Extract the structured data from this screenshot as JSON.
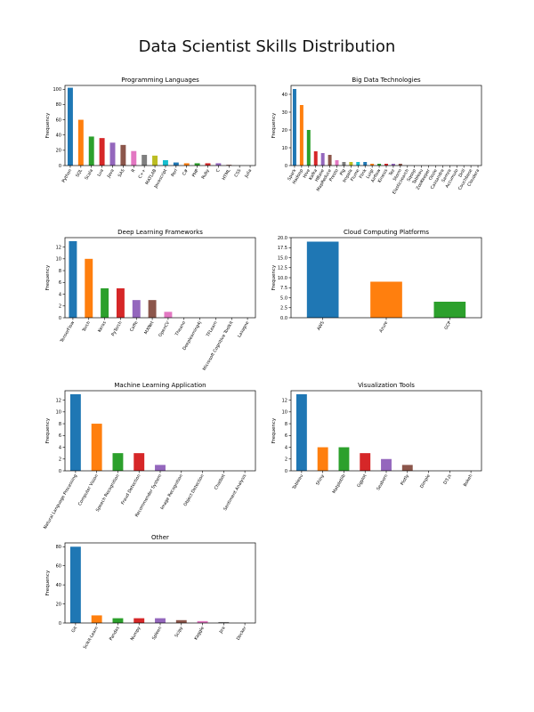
{
  "title": "Data Scientist Skills Distribution",
  "palette": [
    "#1f77b4",
    "#ff7f0e",
    "#2ca02c",
    "#d62728",
    "#9467bd",
    "#8c564b",
    "#e377c2",
    "#7f7f7f",
    "#bcbd22",
    "#17becf"
  ],
  "chart_data": [
    {
      "type": "bar",
      "title": "Programming Languages",
      "ylabel": "Frequency",
      "ylim": [
        0,
        105
      ],
      "yticks": [
        0,
        20,
        40,
        60,
        80,
        100
      ],
      "categories": [
        "Python",
        "SQL",
        "Scala",
        "Lua",
        "Java",
        "SAS",
        "R",
        "C++",
        "MATLAB",
        "Javascript",
        "Perl",
        "C#",
        "PHP",
        "Ruby",
        "C",
        "HTML",
        "CSS",
        "Julia"
      ],
      "values": [
        102,
        60,
        38,
        36,
        30,
        27,
        19,
        14,
        13,
        7,
        4,
        3,
        3,
        3,
        3,
        1,
        0,
        0
      ]
    },
    {
      "type": "bar",
      "title": "Big Data Technologies",
      "ylabel": "Frequency",
      "ylim": [
        0,
        45
      ],
      "yticks": [
        0,
        10,
        20,
        30,
        40
      ],
      "categories": [
        "Spark",
        "Hadoop",
        "Hive",
        "Kafka",
        "HBase",
        "MapReduce",
        "Presto",
        "Pig",
        "Impala",
        "Flume",
        "Flink",
        "Luigi",
        "Airflow",
        "Kinesis",
        "Tez",
        "Storm",
        "Elasticsearch",
        "Sqoop",
        "Tableau",
        "ZooKeeper",
        "Oozie",
        "Cassandra",
        "Samza",
        "Accumulo",
        "Drill",
        "Couchbase",
        "Cloudera"
      ],
      "values": [
        43,
        34,
        20,
        8,
        7,
        6,
        3,
        2,
        2,
        2,
        2,
        1,
        1,
        1,
        1,
        1,
        0,
        0,
        0,
        0,
        0,
        0,
        0,
        0,
        0,
        0,
        0
      ]
    },
    {
      "type": "bar",
      "title": "Deep Learning Frameworks",
      "ylabel": "Frequency",
      "ylim": [
        0,
        13.6
      ],
      "yticks": [
        0,
        2,
        4,
        6,
        8,
        10,
        12
      ],
      "categories": [
        "TensorFlow",
        "Torch",
        "Keras",
        "PyTorch",
        "Caffe",
        "MXNet",
        "OpenCV",
        "Theano",
        "Deeplearning4j",
        "TFLearn",
        "Microsoft Cognitive Toolkit",
        "Lasagne"
      ],
      "values": [
        13,
        10,
        5,
        5,
        3,
        3,
        1,
        0,
        0,
        0,
        0,
        0
      ]
    },
    {
      "type": "bar",
      "title": "Cloud Computing Platforms",
      "ylabel": "Frequency",
      "ylim": [
        0,
        20
      ],
      "yticks": [
        0.0,
        2.5,
        5.0,
        7.5,
        10.0,
        12.5,
        15.0,
        17.5,
        20.0
      ],
      "categories": [
        "AWS",
        "Azure",
        "GCP"
      ],
      "values": [
        19,
        9,
        4
      ]
    },
    {
      "type": "bar",
      "title": "Machine Learning Application",
      "ylabel": "Frequency",
      "ylim": [
        0,
        13.6
      ],
      "yticks": [
        0,
        2,
        4,
        6,
        8,
        10,
        12
      ],
      "categories": [
        "Natural Language Processing",
        "Computer Vision",
        "Speech Recognition",
        "Fraud Detection",
        "Recommender System",
        "Image Recognition",
        "Object Detection",
        "Chatbot",
        "Sentiment Analysis"
      ],
      "values": [
        13,
        8,
        3,
        3,
        1,
        0,
        0,
        0,
        0
      ]
    },
    {
      "type": "bar",
      "title": "Visualization Tools",
      "ylabel": "Frequency",
      "ylim": [
        0,
        13.6
      ],
      "yticks": [
        0,
        2,
        4,
        6,
        8,
        10,
        12
      ],
      "categories": [
        "Tableau",
        "Shiny",
        "Matplotlib",
        "Ggplot",
        "Seaborn",
        "Plotly",
        "Dimple",
        "D3.js",
        "Bokeh"
      ],
      "values": [
        13,
        4,
        4,
        3,
        2,
        1,
        0,
        0,
        0
      ]
    },
    {
      "type": "bar",
      "title": "Other",
      "ylabel": "Frequency",
      "ylim": [
        0,
        84
      ],
      "yticks": [
        0,
        20,
        40,
        60,
        80
      ],
      "categories": [
        "Git",
        "Scikit-Learn",
        "Pandas",
        "Numpy",
        "Spleen",
        "Scipy",
        "Kaggle",
        "Jira",
        "Docker"
      ],
      "values": [
        80,
        8,
        5,
        5,
        5,
        3,
        2,
        1,
        0
      ]
    }
  ]
}
